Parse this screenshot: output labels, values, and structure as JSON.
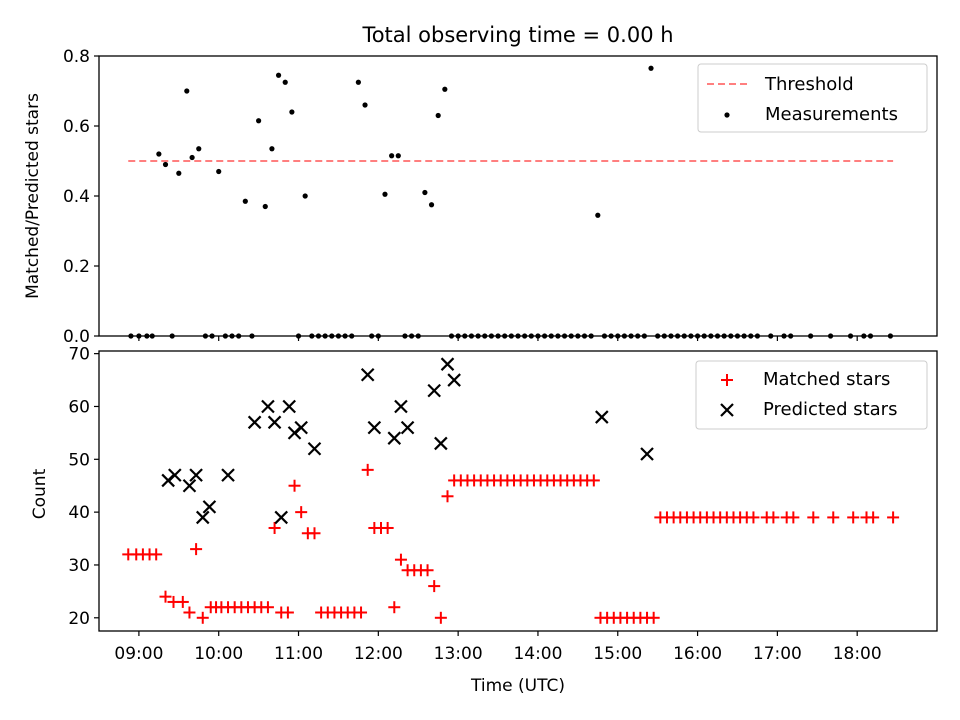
{
  "figure": {
    "title": "Total observing time = 0.00 h",
    "xlabel": "Time (UTC)"
  },
  "colors": {
    "threshold": "#ff7f7f",
    "measurements": "#000000",
    "matched": "#ff0000",
    "predicted": "#000000"
  },
  "chart_data": [
    {
      "type": "scatter",
      "ylabel": "Matched/Predicted stars",
      "xlim": [
        "08:30",
        "19:00"
      ],
      "ylim": [
        0,
        0.8
      ],
      "yticks": [
        "0.0",
        "0.2",
        "0.4",
        "0.6",
        "0.8"
      ],
      "legend_position": "top-right",
      "threshold": {
        "name": "Threshold",
        "y": 0.5,
        "x_range": [
          "08:52",
          "18:27"
        ],
        "style": "dashed"
      },
      "series": [
        {
          "name": "Measurements",
          "marker": "dot",
          "x": [
            "08:54",
            "09:00",
            "09:06",
            "09:10",
            "09:15",
            "09:20",
            "09:25",
            "09:30",
            "09:36",
            "09:40",
            "09:45",
            "09:50",
            "09:55",
            "10:00",
            "10:05",
            "10:10",
            "10:15",
            "10:20",
            "10:25",
            "10:30",
            "10:35",
            "10:40",
            "10:45",
            "10:50",
            "10:55",
            "11:00",
            "11:05",
            "11:10",
            "11:15",
            "11:20",
            "11:25",
            "11:30",
            "11:35",
            "11:40",
            "11:45",
            "11:50",
            "11:55",
            "12:00",
            "12:05",
            "12:10",
            "12:15",
            "12:20",
            "12:25",
            "12:30",
            "12:35",
            "12:40",
            "12:45",
            "12:50",
            "12:55",
            "13:00",
            "13:05",
            "13:10",
            "13:15",
            "13:20",
            "13:25",
            "13:30",
            "13:35",
            "13:40",
            "13:45",
            "13:50",
            "13:55",
            "14:00",
            "14:05",
            "14:10",
            "14:15",
            "14:20",
            "14:25",
            "14:30",
            "14:35",
            "14:40",
            "14:45",
            "14:50",
            "14:55",
            "15:00",
            "15:05",
            "15:10",
            "15:15",
            "15:20",
            "15:25",
            "15:30",
            "15:35",
            "15:40",
            "15:45",
            "15:50",
            "15:55",
            "16:00",
            "16:05",
            "16:10",
            "16:15",
            "16:20",
            "16:25",
            "16:30",
            "16:35",
            "16:40",
            "16:45",
            "16:55",
            "17:05",
            "17:10",
            "17:25",
            "17:40",
            "17:55",
            "18:05",
            "18:10",
            "18:25"
          ],
          "y": [
            0.0,
            0.0,
            0.0,
            0.0,
            0.52,
            0.49,
            0.0,
            0.465,
            0.7,
            0.51,
            0.535,
            0.0,
            0.0,
            0.47,
            0.0,
            0.0,
            0.0,
            0.385,
            0.0,
            0.615,
            0.37,
            0.535,
            0.745,
            0.725,
            0.64,
            0.0,
            0.4,
            0.0,
            0.0,
            0.0,
            0.0,
            0.0,
            0.0,
            0.0,
            0.725,
            0.66,
            0.0,
            0.0,
            0.405,
            0.515,
            0.515,
            0.0,
            0.0,
            0.0,
            0.41,
            0.375,
            0.63,
            0.705,
            0.0,
            0.0,
            0.0,
            0.0,
            0.0,
            0.0,
            0.0,
            0.0,
            0.0,
            0.0,
            0.0,
            0.0,
            0.0,
            0.0,
            0.0,
            0.0,
            0.0,
            0.0,
            0.0,
            0.0,
            0.0,
            0.0,
            0.345,
            0.0,
            0.0,
            0.0,
            0.0,
            0.0,
            0.0,
            0.0,
            0.765,
            0.0,
            0.0,
            0.0,
            0.0,
            0.0,
            0.0,
            0.0,
            0.0,
            0.0,
            0.0,
            0.0,
            0.0,
            0.0,
            0.0,
            0.0,
            0.0,
            0.0,
            0.0,
            0.0,
            0.0,
            0.0,
            0.0,
            0.0,
            0.0,
            0.0
          ]
        }
      ]
    },
    {
      "type": "scatter",
      "ylabel": "Count",
      "xlim": [
        "08:30",
        "19:00"
      ],
      "ylim": [
        17.5,
        70.5
      ],
      "yticks": [
        "20",
        "30",
        "40",
        "50",
        "60",
        "70"
      ],
      "xticks": [
        "09:00",
        "10:00",
        "11:00",
        "12:00",
        "13:00",
        "14:00",
        "15:00",
        "16:00",
        "17:00",
        "18:00"
      ],
      "legend_position": "top-right",
      "series": [
        {
          "name": "Matched stars",
          "marker": "plus",
          "x": [
            "08:52",
            "08:58",
            "09:03",
            "09:08",
            "09:13",
            "09:20",
            "09:26",
            "09:33",
            "09:38",
            "09:43",
            "09:48",
            "09:54",
            "09:58",
            "10:02",
            "10:07",
            "10:12",
            "10:17",
            "10:22",
            "10:27",
            "10:32",
            "10:37",
            "10:42",
            "10:47",
            "10:52",
            "10:57",
            "11:02",
            "11:07",
            "11:12",
            "11:17",
            "11:22",
            "11:27",
            "11:32",
            "11:37",
            "11:42",
            "11:47",
            "11:52",
            "11:57",
            "12:02",
            "12:07",
            "12:12",
            "12:17",
            "12:22",
            "12:27",
            "12:32",
            "12:37",
            "12:42",
            "12:47",
            "12:52",
            "12:57",
            "13:02",
            "13:07",
            "13:12",
            "13:17",
            "13:22",
            "13:27",
            "13:32",
            "13:37",
            "13:42",
            "13:47",
            "13:52",
            "13:57",
            "14:02",
            "14:07",
            "14:12",
            "14:17",
            "14:22",
            "14:27",
            "14:32",
            "14:37",
            "14:42",
            "14:47",
            "14:52",
            "14:57",
            "15:02",
            "15:07",
            "15:12",
            "15:17",
            "15:22",
            "15:27",
            "15:32",
            "15:37",
            "15:42",
            "15:47",
            "15:52",
            "15:57",
            "16:02",
            "16:07",
            "16:12",
            "16:17",
            "16:22",
            "16:27",
            "16:32",
            "16:37",
            "16:42",
            "16:52",
            "16:57",
            "17:07",
            "17:12",
            "17:27",
            "17:42",
            "17:57",
            "18:07",
            "18:12",
            "18:27"
          ],
          "y": [
            32,
            32,
            32,
            32,
            32,
            24,
            23,
            23,
            21,
            33,
            20,
            22,
            22,
            22,
            22,
            22,
            22,
            22,
            22,
            22,
            22,
            37,
            21,
            21,
            45,
            40,
            36,
            36,
            21,
            21,
            21,
            21,
            21,
            21,
            21,
            48,
            37,
            37,
            37,
            22,
            31,
            29,
            29,
            29,
            29,
            26,
            20,
            43,
            46,
            46,
            46,
            46,
            46,
            46,
            46,
            46,
            46,
            46,
            46,
            46,
            46,
            46,
            46,
            46,
            46,
            46,
            46,
            46,
            46,
            46,
            20,
            20,
            20,
            20,
            20,
            20,
            20,
            20,
            20,
            39,
            39,
            39,
            39,
            39,
            39,
            39,
            39,
            39,
            39,
            39,
            39,
            39,
            39,
            39,
            39,
            39,
            39,
            39,
            39,
            39,
            39,
            39,
            39,
            39
          ]
        },
        {
          "name": "Predicted stars",
          "marker": "x",
          "x": [
            "09:22",
            "09:27",
            "09:38",
            "09:43",
            "09:48",
            "09:53",
            "10:07",
            "10:27",
            "10:37",
            "10:42",
            "10:47",
            "10:53",
            "10:57",
            "11:02",
            "11:12",
            "11:52",
            "11:57",
            "12:12",
            "12:17",
            "12:22",
            "12:42",
            "12:47",
            "12:52",
            "12:57",
            "14:48",
            "15:22"
          ],
          "y": [
            46,
            47,
            45,
            47,
            39,
            41,
            47,
            57,
            60,
            57,
            39,
            60,
            55,
            56,
            52,
            66,
            56,
            54,
            60,
            56,
            63,
            53,
            68,
            65,
            58,
            51
          ]
        }
      ]
    }
  ]
}
